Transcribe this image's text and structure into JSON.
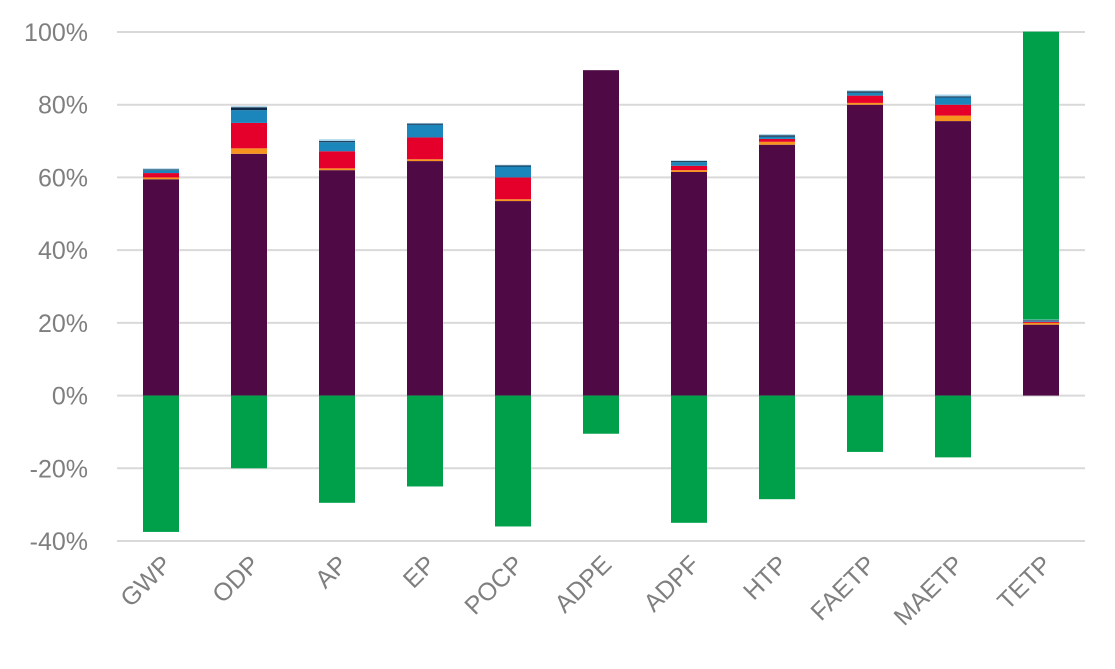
{
  "chart_data": {
    "type": "bar",
    "stacked": true,
    "title": "",
    "xlabel": "",
    "ylabel": "",
    "ylim": [
      -40,
      100
    ],
    "yticks": [
      -40,
      -20,
      0,
      20,
      40,
      60,
      80,
      100
    ],
    "ytick_labels": [
      "-40%",
      "-20%",
      "0%",
      "20%",
      "40%",
      "60%",
      "80%",
      "100%"
    ],
    "grid": true,
    "legend": "none",
    "categories": [
      "GWP",
      "ODP",
      "AP",
      "EP",
      "POCP",
      "ADPE",
      "ADPF",
      "HTP",
      "FAETP",
      "MAETP",
      "TETP"
    ],
    "series": [
      {
        "color": "#4f0a46",
        "values": [
          59.5,
          66.5,
          62,
          64.5,
          53.5,
          89.5,
          61.5,
          69,
          80,
          75.5,
          19.5
        ]
      },
      {
        "color": "#f7941d",
        "values": [
          0.5,
          1.5,
          0.5,
          0.5,
          0.5,
          0,
          0.5,
          0.8,
          0.5,
          1.5,
          0.5
        ]
      },
      {
        "color": "#e4002b",
        "values": [
          1.2,
          7,
          4.7,
          6,
          6,
          0,
          1.2,
          0.8,
          2,
          3,
          0.3
        ]
      },
      {
        "color": "#1a86bb",
        "values": [
          0.8,
          3.5,
          2.5,
          3.5,
          3,
          0,
          1,
          0.6,
          0.8,
          2,
          0.2
        ]
      },
      {
        "color": "#0d2c4b",
        "values": [
          0.2,
          0.8,
          0.3,
          0.3,
          0.3,
          0,
          0.3,
          0.4,
          0.4,
          0.3,
          0.2
        ]
      },
      {
        "color": "#a7d4ea",
        "values": [
          0.3,
          0.3,
          0.5,
          0.2,
          0.2,
          0,
          0.2,
          0.3,
          0.3,
          0.5,
          0.2
        ]
      },
      {
        "color": "#00a04b",
        "values": [
          -37.5,
          -20,
          -29.5,
          -25,
          -36,
          -10.5,
          -35,
          -28.5,
          -15.5,
          -17,
          79.2
        ]
      }
    ]
  }
}
